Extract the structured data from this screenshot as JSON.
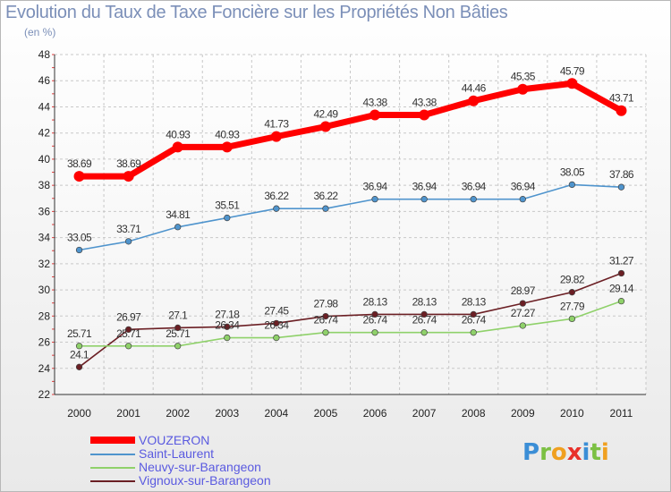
{
  "brand": {
    "letters": [
      {
        "ch": "P",
        "color": "#3b8ed6"
      },
      {
        "ch": "r",
        "color": "#7cc043"
      },
      {
        "ch": "o",
        "color": "#f0a020"
      },
      {
        "ch": "x",
        "color": "#e8302a"
      },
      {
        "ch": "i",
        "color": "#3b8ed6"
      },
      {
        "ch": "t",
        "color": "#7cc043"
      },
      {
        "ch": "i",
        "color": "#f0a020"
      }
    ]
  },
  "chart_data": {
    "type": "line",
    "title": "Evolution du Taux de Taxe Foncière sur les Propriétés Non Bâties",
    "subtitle": "(en %)",
    "x": [
      "2000",
      "2001",
      "2002",
      "2003",
      "2004",
      "2005",
      "2006",
      "2007",
      "2008",
      "2009",
      "2010",
      "2011"
    ],
    "ylim": [
      22,
      48
    ],
    "yticks": [
      22,
      24,
      26,
      28,
      30,
      32,
      34,
      36,
      38,
      40,
      42,
      44,
      46,
      48
    ],
    "grid": true,
    "legend_position": "bottom-left",
    "series": [
      {
        "name": "VOUZERON",
        "color": "#ff0000",
        "values": [
          38.69,
          38.69,
          40.93,
          40.93,
          41.73,
          42.49,
          43.38,
          43.38,
          44.46,
          45.35,
          45.79,
          43.71
        ],
        "labels": [
          "38.69",
          "38.69",
          "40.93",
          "40.93",
          "41.73",
          "42.49",
          "43.38",
          "43.38",
          "44.46",
          "45.35",
          "45.79",
          "43.71"
        ]
      },
      {
        "name": "Saint-Laurent",
        "color": "#4f94cd",
        "values": [
          33.05,
          33.71,
          34.81,
          35.51,
          36.22,
          36.22,
          36.94,
          36.94,
          36.94,
          36.94,
          38.05,
          37.86
        ],
        "labels": [
          "33.05",
          "33.71",
          "34.81",
          "35.51",
          "36.22",
          "36.22",
          "36.94",
          "36.94",
          "36.94",
          "36.94",
          "38.05",
          "37.86"
        ]
      },
      {
        "name": "Neuvy-sur-Barangeon",
        "color": "#8fd16a",
        "values": [
          25.71,
          25.71,
          25.71,
          26.34,
          26.34,
          26.74,
          26.74,
          26.74,
          26.74,
          27.27,
          27.79,
          29.14
        ],
        "labels": [
          "25.71",
          "25.71",
          "25.71",
          "26.34",
          "26.34",
          "26.74",
          "26.74",
          "26.74",
          "26.74",
          "27.27",
          "27.79",
          "29.14"
        ]
      },
      {
        "name": "Vignoux-sur-Barangeon",
        "color": "#6b1f24",
        "values": [
          24.1,
          26.97,
          27.1,
          27.18,
          27.45,
          27.98,
          28.13,
          28.13,
          28.13,
          28.97,
          29.82,
          31.27
        ],
        "labels": [
          "24.1",
          "26.97",
          "27.1",
          "27.18",
          "27.45",
          "27.98",
          "28.13",
          "28.13",
          "28.13",
          "28.97",
          "29.82",
          "31.27"
        ]
      }
    ]
  }
}
